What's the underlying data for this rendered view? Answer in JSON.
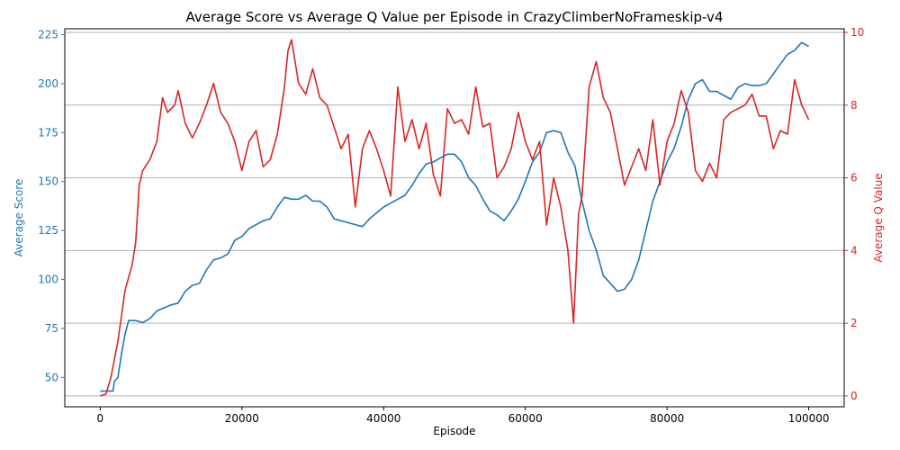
{
  "chart_data": {
    "type": "line",
    "title": "Average Score vs Average Q Value per Episode in CrazyClimberNoFrameskip-v4",
    "xlabel": "Episode",
    "ylabel_left": "Average Score",
    "ylabel_right": "Average Q Value",
    "xlim": [
      -5000,
      105000
    ],
    "ylim_left": [
      35,
      228
    ],
    "ylim_right": [
      -0.3,
      10.1
    ],
    "x_ticks": [
      0,
      20000,
      40000,
      60000,
      80000,
      100000
    ],
    "x_tick_labels": [
      "0",
      "20000",
      "40000",
      "60000",
      "80000",
      "100000"
    ],
    "y_left_ticks": [
      50,
      75,
      100,
      125,
      150,
      175,
      200,
      225
    ],
    "y_left_tick_labels": [
      "50",
      "75",
      "100",
      "125",
      "150",
      "175",
      "200",
      "225"
    ],
    "y_right_ticks": [
      0,
      2,
      4,
      6,
      8,
      10
    ],
    "y_right_tick_labels": [
      "0",
      "2",
      "4",
      "6",
      "8",
      "10"
    ],
    "grid": "horizontal lines at right-axis ticks",
    "colors": {
      "score": "#1f77b4",
      "q": "#d62728",
      "grid": "#b0b0b0"
    },
    "series": [
      {
        "axis": "left",
        "color": "#1f77b4",
        "points": [
          [
            0,
            43
          ],
          [
            1800,
            43
          ],
          [
            2000,
            48
          ],
          [
            2500,
            50
          ],
          [
            3000,
            62
          ],
          [
            3500,
            72
          ],
          [
            4000,
            79
          ],
          [
            5000,
            79
          ],
          [
            6000,
            78
          ],
          [
            7000,
            80
          ],
          [
            8000,
            84
          ],
          [
            10000,
            87
          ],
          [
            11000,
            88
          ],
          [
            12000,
            94
          ],
          [
            13000,
            97
          ],
          [
            14000,
            98
          ],
          [
            15000,
            105
          ],
          [
            16000,
            110
          ],
          [
            17000,
            111
          ],
          [
            18000,
            113
          ],
          [
            19000,
            120
          ],
          [
            20000,
            122
          ],
          [
            21000,
            126
          ],
          [
            22000,
            128
          ],
          [
            23000,
            130
          ],
          [
            24000,
            131
          ],
          [
            25000,
            137
          ],
          [
            26000,
            142
          ],
          [
            27000,
            141
          ],
          [
            28000,
            141
          ],
          [
            29000,
            143
          ],
          [
            30000,
            140
          ],
          [
            31000,
            140
          ],
          [
            32000,
            137
          ],
          [
            33000,
            131
          ],
          [
            34000,
            130
          ],
          [
            35000,
            129
          ],
          [
            36000,
            128
          ],
          [
            37000,
            127
          ],
          [
            38000,
            131
          ],
          [
            39000,
            134
          ],
          [
            40000,
            137
          ],
          [
            41000,
            139
          ],
          [
            42000,
            141
          ],
          [
            43000,
            143
          ],
          [
            44000,
            148
          ],
          [
            45000,
            154
          ],
          [
            46000,
            159
          ],
          [
            47000,
            160
          ],
          [
            48000,
            162
          ],
          [
            49000,
            164
          ],
          [
            50000,
            164
          ],
          [
            51000,
            160
          ],
          [
            52000,
            152
          ],
          [
            53000,
            148
          ],
          [
            54000,
            141
          ],
          [
            55000,
            135
          ],
          [
            56000,
            133
          ],
          [
            57000,
            130
          ],
          [
            58000,
            135
          ],
          [
            59000,
            141
          ],
          [
            60000,
            150
          ],
          [
            61000,
            160
          ],
          [
            62000,
            165
          ],
          [
            63000,
            175
          ],
          [
            64000,
            176
          ],
          [
            65000,
            175
          ],
          [
            66000,
            165
          ],
          [
            67000,
            158
          ],
          [
            68000,
            140
          ],
          [
            69000,
            125
          ],
          [
            70000,
            115
          ],
          [
            71000,
            102
          ],
          [
            72000,
            98
          ],
          [
            73000,
            94
          ],
          [
            74000,
            95
          ],
          [
            75000,
            100
          ],
          [
            76000,
            110
          ],
          [
            77000,
            125
          ],
          [
            78000,
            140
          ],
          [
            79000,
            150
          ],
          [
            80000,
            160
          ],
          [
            81000,
            167
          ],
          [
            82000,
            178
          ],
          [
            83000,
            192
          ],
          [
            84000,
            200
          ],
          [
            85000,
            202
          ],
          [
            86000,
            196
          ],
          [
            87000,
            196
          ],
          [
            88000,
            194
          ],
          [
            89000,
            192
          ],
          [
            90000,
            198
          ],
          [
            91000,
            200
          ],
          [
            92000,
            199
          ],
          [
            93000,
            199
          ],
          [
            94000,
            200
          ],
          [
            95000,
            205
          ],
          [
            96000,
            210
          ],
          [
            97000,
            215
          ],
          [
            98000,
            217
          ],
          [
            99000,
            221
          ],
          [
            100000,
            219
          ]
        ]
      },
      {
        "axis": "right",
        "color": "#d62728",
        "points": [
          [
            0,
            0.0
          ],
          [
            800,
            0.05
          ],
          [
            1500,
            0.5
          ],
          [
            2500,
            1.5
          ],
          [
            3500,
            2.9
          ],
          [
            4500,
            3.6
          ],
          [
            5000,
            4.2
          ],
          [
            5500,
            5.8
          ],
          [
            6000,
            6.2
          ],
          [
            7000,
            6.5
          ],
          [
            8000,
            7.0
          ],
          [
            8800,
            8.2
          ],
          [
            9500,
            7.8
          ],
          [
            10500,
            8.0
          ],
          [
            11000,
            8.4
          ],
          [
            12000,
            7.5
          ],
          [
            13000,
            7.1
          ],
          [
            14000,
            7.5
          ],
          [
            15000,
            8.0
          ],
          [
            16000,
            8.6
          ],
          [
            17000,
            7.8
          ],
          [
            18000,
            7.5
          ],
          [
            19000,
            7.0
          ],
          [
            20000,
            6.2
          ],
          [
            21000,
            7.0
          ],
          [
            22000,
            7.3
          ],
          [
            23000,
            6.3
          ],
          [
            24000,
            6.5
          ],
          [
            25000,
            7.2
          ],
          [
            26000,
            8.5
          ],
          [
            26500,
            9.5
          ],
          [
            27000,
            9.8
          ],
          [
            28000,
            8.6
          ],
          [
            29000,
            8.3
          ],
          [
            30000,
            9.0
          ],
          [
            31000,
            8.2
          ],
          [
            32000,
            8.0
          ],
          [
            33000,
            7.4
          ],
          [
            34000,
            6.8
          ],
          [
            35000,
            7.2
          ],
          [
            36000,
            5.2
          ],
          [
            37000,
            6.8
          ],
          [
            38000,
            7.3
          ],
          [
            39000,
            6.8
          ],
          [
            40000,
            6.2
          ],
          [
            41000,
            5.5
          ],
          [
            42000,
            8.5
          ],
          [
            43000,
            7.0
          ],
          [
            44000,
            7.6
          ],
          [
            45000,
            6.8
          ],
          [
            46000,
            7.5
          ],
          [
            47000,
            6.1
          ],
          [
            48000,
            5.5
          ],
          [
            49000,
            7.9
          ],
          [
            50000,
            7.5
          ],
          [
            51000,
            7.6
          ],
          [
            52000,
            7.2
          ],
          [
            53000,
            8.5
          ],
          [
            54000,
            7.4
          ],
          [
            55000,
            7.5
          ],
          [
            56000,
            6.0
          ],
          [
            57000,
            6.3
          ],
          [
            58000,
            6.8
          ],
          [
            59000,
            7.8
          ],
          [
            60000,
            7.0
          ],
          [
            61000,
            6.5
          ],
          [
            62000,
            7.0
          ],
          [
            63000,
            4.7
          ],
          [
            64000,
            6.0
          ],
          [
            65000,
            5.2
          ],
          [
            66000,
            4.0
          ],
          [
            66800,
            2.0
          ],
          [
            67500,
            5.0
          ],
          [
            68000,
            5.5
          ],
          [
            69000,
            8.5
          ],
          [
            70000,
            9.2
          ],
          [
            71000,
            8.2
          ],
          [
            72000,
            7.8
          ],
          [
            73000,
            6.8
          ],
          [
            74000,
            5.8
          ],
          [
            75000,
            6.3
          ],
          [
            76000,
            6.8
          ],
          [
            77000,
            6.2
          ],
          [
            78000,
            7.6
          ],
          [
            79000,
            5.8
          ],
          [
            80000,
            7.0
          ],
          [
            81000,
            7.5
          ],
          [
            82000,
            8.4
          ],
          [
            83000,
            7.8
          ],
          [
            84000,
            6.2
          ],
          [
            85000,
            5.9
          ],
          [
            86000,
            6.4
          ],
          [
            87000,
            6.0
          ],
          [
            88000,
            7.6
          ],
          [
            89000,
            7.8
          ],
          [
            90000,
            7.9
          ],
          [
            91000,
            8.0
          ],
          [
            92000,
            8.3
          ],
          [
            93000,
            7.7
          ],
          [
            94000,
            7.7
          ],
          [
            95000,
            6.8
          ],
          [
            96000,
            7.3
          ],
          [
            97000,
            7.2
          ],
          [
            98000,
            8.7
          ],
          [
            99000,
            8.0
          ],
          [
            100000,
            7.6
          ]
        ]
      }
    ]
  }
}
